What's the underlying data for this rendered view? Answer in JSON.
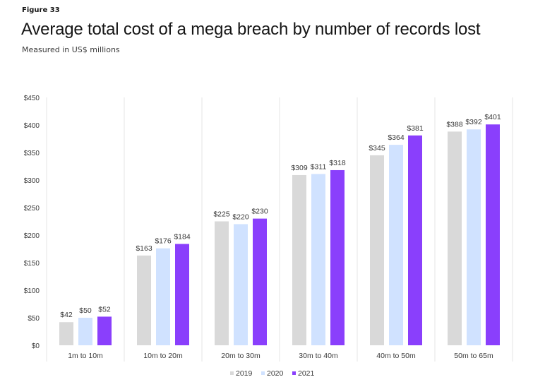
{
  "figure_label": "Figure 33",
  "chart_data": {
    "type": "bar",
    "title": "Average total cost of a mega breach by number of records lost",
    "subtitle": "Measured in US$ millions",
    "xlabel": "",
    "ylabel": "",
    "ylim": [
      0,
      450
    ],
    "yticks": [
      0,
      50,
      100,
      150,
      200,
      250,
      300,
      350,
      400,
      450
    ],
    "ytick_labels": [
      "$0",
      "$50",
      "$100",
      "$150",
      "$200",
      "$250",
      "$300",
      "$350",
      "$400",
      "$450"
    ],
    "categories": [
      "1m to 10m",
      "10m to 20m",
      "20m to 30m",
      "30m to 40m",
      "40m to 50m",
      "50m to 65m"
    ],
    "series": [
      {
        "name": "2019",
        "color": "#d9d9d9",
        "values": [
          42,
          163,
          225,
          309,
          345,
          388
        ],
        "labels": [
          "$42",
          "$163",
          "$225",
          "$309",
          "$345",
          "$388"
        ]
      },
      {
        "name": "2020",
        "color": "#d0e2ff",
        "values": [
          50,
          176,
          220,
          311,
          364,
          392
        ],
        "labels": [
          "$50",
          "$176",
          "$220",
          "$311",
          "$364",
          "$392"
        ]
      },
      {
        "name": "2021",
        "color": "#8a3ffc",
        "values": [
          52,
          184,
          230,
          318,
          381,
          401
        ],
        "labels": [
          "$52",
          "$184",
          "$230",
          "$318",
          "$381",
          "$401"
        ]
      }
    ],
    "grid": false,
    "category_separators": true,
    "legend_position": "bottom-center"
  }
}
